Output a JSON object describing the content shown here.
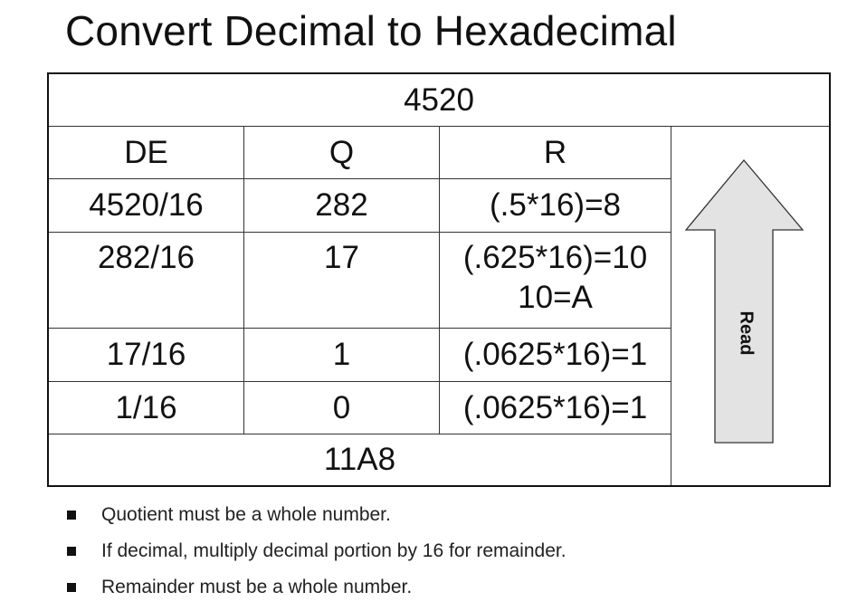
{
  "title": "Convert Decimal to Hexadecimal",
  "table": {
    "number": "4520",
    "headers": [
      "DE",
      "Q",
      "R"
    ],
    "rows": [
      {
        "de": "4520/16",
        "q": "282",
        "r": "(.5*16)=8",
        "r2": ""
      },
      {
        "de": "282/16",
        "q": "17",
        "r": "(.625*16)=10",
        "r2": "10=A"
      },
      {
        "de": "17/16",
        "q": "1",
        "r": "(.0625*16)=1",
        "r2": ""
      },
      {
        "de": "1/16",
        "q": "0",
        "r": "(.0625*16)=1",
        "r2": ""
      }
    ],
    "result": "11A8",
    "arrow_label": "Read"
  },
  "bullets": [
    "Quotient must be a whole number.",
    "If decimal, multiply decimal portion by 16 for remainder.",
    "Remainder must be a whole number."
  ],
  "colors": {
    "arrow_fill": "#e3e3e3",
    "border": "#111111"
  }
}
